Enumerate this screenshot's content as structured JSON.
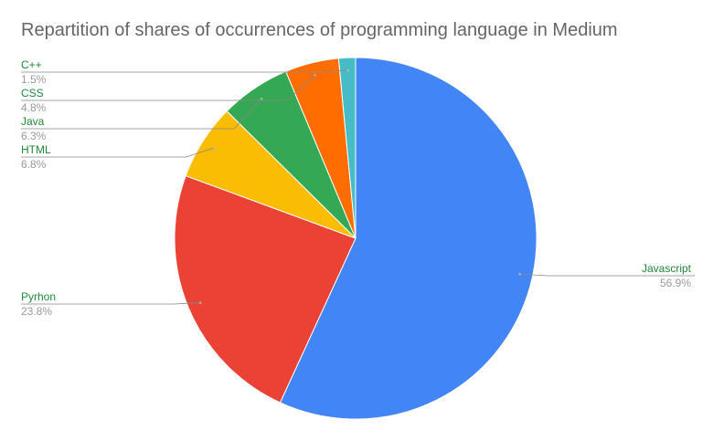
{
  "chart_data": {
    "type": "pie",
    "title": "Repartition of shares of occurrences of programming language in Medium",
    "slices": [
      {
        "label": "Javascript",
        "value": 56.9,
        "display": "56.9%",
        "color": "#4285f4"
      },
      {
        "label": "Pyrhon",
        "value": 23.8,
        "display": "23.8%",
        "color": "#ea4335"
      },
      {
        "label": "HTML",
        "value": 6.8,
        "display": "6.8%",
        "color": "#fbbc04"
      },
      {
        "label": "Java",
        "value": 6.3,
        "display": "6.3%",
        "color": "#34a853"
      },
      {
        "label": "CSS",
        "value": 4.8,
        "display": "4.8%",
        "color": "#ff6d01"
      },
      {
        "label": "C++",
        "value": 1.5,
        "display": "1.5%",
        "color": "#46bdc6"
      }
    ],
    "legend": "none",
    "label_style": "leader-lines"
  }
}
